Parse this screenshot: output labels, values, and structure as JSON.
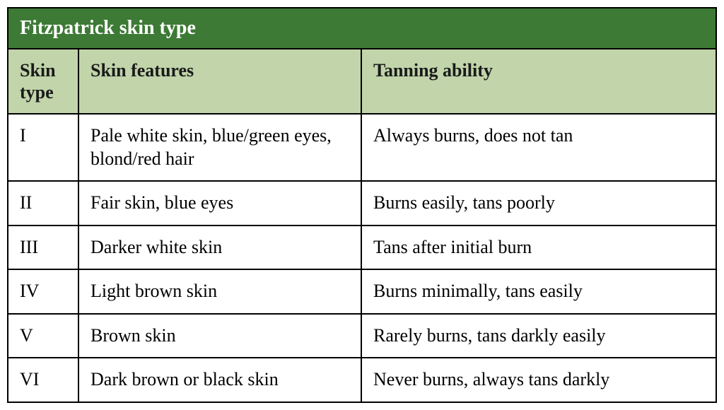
{
  "table": {
    "title": "Fitzpatrick skin type",
    "title_background": "#3d7a35",
    "title_color": "#ffffff",
    "header_background": "#c1d4aa",
    "header_color": "#1a1a1a",
    "cell_background": "#ffffff",
    "cell_color": "#000000",
    "border_color": "#000000",
    "columns": [
      {
        "label": "Skin type",
        "key": "type"
      },
      {
        "label": "Skin features",
        "key": "features"
      },
      {
        "label": "Tanning ability",
        "key": "tanning"
      }
    ],
    "rows": [
      {
        "type": "I",
        "features": "Pale white skin, blue/green eyes, blond/red hair",
        "tanning": "Always burns, does not tan"
      },
      {
        "type": "II",
        "features": "Fair skin, blue eyes",
        "tanning": "Burns easily, tans poorly"
      },
      {
        "type": "III",
        "features": "Darker white skin",
        "tanning": "Tans after initial burn"
      },
      {
        "type": "IV",
        "features": "Light brown skin",
        "tanning": "Burns minimally, tans easily"
      },
      {
        "type": "V",
        "features": "Brown skin",
        "tanning": "Rarely burns, tans darkly easily"
      },
      {
        "type": "VI",
        "features": "Dark brown or black skin",
        "tanning": "Never burns, always tans darkly"
      }
    ],
    "font_family": "Georgia, serif",
    "title_fontsize": 28,
    "header_fontsize": 26,
    "cell_fontsize": 26,
    "col_widths": {
      "type": 100,
      "features": 400,
      "tanning": "auto"
    }
  }
}
